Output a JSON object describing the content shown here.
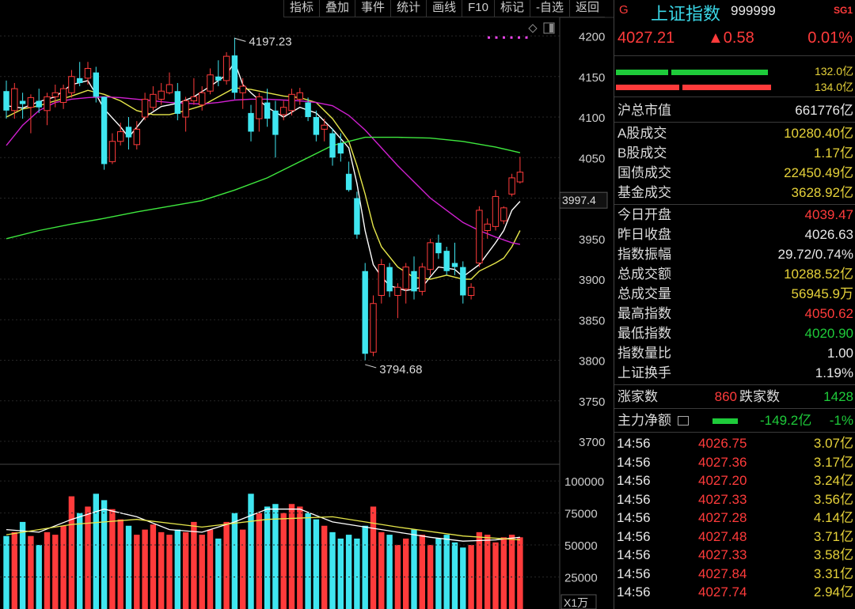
{
  "toolbar": {
    "items": [
      "指标",
      "叠加",
      "事件",
      "统计",
      "画线",
      "F10",
      "标记",
      "-自选",
      "返回"
    ]
  },
  "chart_data": {
    "type": "candlestick",
    "price_axis": {
      "min": 3700,
      "max": 4200,
      "ticks": [
        "4200",
        "4150",
        "4100",
        "4050",
        "4000",
        "3950",
        "3900",
        "3850",
        "3800",
        "3750",
        "3700"
      ]
    },
    "current_price_label": "3997.4",
    "high_annotation": "4197.23",
    "low_annotation": "3794.68",
    "candles": [
      {
        "o": 4132,
        "h": 4145,
        "l": 4098,
        "c": 4108
      },
      {
        "o": 4108,
        "h": 4142,
        "l": 4098,
        "c": 4135
      },
      {
        "o": 4120,
        "h": 4130,
        "l": 4098,
        "c": 4116
      },
      {
        "o": 4112,
        "h": 4128,
        "l": 4080,
        "c": 4124
      },
      {
        "o": 4120,
        "h": 4135,
        "l": 4105,
        "c": 4112
      },
      {
        "o": 4108,
        "h": 4130,
        "l": 4090,
        "c": 4125
      },
      {
        "o": 4125,
        "h": 4140,
        "l": 4112,
        "c": 4130
      },
      {
        "o": 4118,
        "h": 4140,
        "l": 4110,
        "c": 4135
      },
      {
        "o": 4130,
        "h": 4158,
        "l": 4124,
        "c": 4150
      },
      {
        "o": 4148,
        "h": 4168,
        "l": 4138,
        "c": 4142
      },
      {
        "o": 4148,
        "h": 4168,
        "l": 4140,
        "c": 4160
      },
      {
        "o": 4155,
        "h": 4162,
        "l": 4118,
        "c": 4125
      },
      {
        "o": 4125,
        "h": 4125,
        "l": 4035,
        "c": 4042
      },
      {
        "o": 4045,
        "h": 4080,
        "l": 4042,
        "c": 4070
      },
      {
        "o": 4070,
        "h": 4093,
        "l": 4065,
        "c": 4082
      },
      {
        "o": 4088,
        "h": 4100,
        "l": 4060,
        "c": 4075
      },
      {
        "o": 4066,
        "h": 4095,
        "l": 4060,
        "c": 4085
      },
      {
        "o": 4100,
        "h": 4130,
        "l": 4096,
        "c": 4122
      },
      {
        "o": 4112,
        "h": 4138,
        "l": 4108,
        "c": 4128
      },
      {
        "o": 4122,
        "h": 4142,
        "l": 4115,
        "c": 4132
      },
      {
        "o": 4130,
        "h": 4155,
        "l": 4128,
        "c": 4140
      },
      {
        "o": 4132,
        "h": 4142,
        "l": 4096,
        "c": 4104
      },
      {
        "o": 4100,
        "h": 4125,
        "l": 4082,
        "c": 4120
      },
      {
        "o": 4120,
        "h": 4148,
        "l": 4115,
        "c": 4125
      },
      {
        "o": 4115,
        "h": 4138,
        "l": 4108,
        "c": 4130
      },
      {
        "o": 4132,
        "h": 4160,
        "l": 4128,
        "c": 4152
      },
      {
        "o": 4150,
        "h": 4170,
        "l": 4138,
        "c": 4145
      },
      {
        "o": 4145,
        "h": 4180,
        "l": 4140,
        "c": 4175
      },
      {
        "o": 4176,
        "h": 4198,
        "l": 4122,
        "c": 4130
      },
      {
        "o": 4130,
        "h": 4148,
        "l": 4110,
        "c": 4138
      },
      {
        "o": 4105,
        "h": 4115,
        "l": 4070,
        "c": 4082
      },
      {
        "o": 4098,
        "h": 4130,
        "l": 4082,
        "c": 4125
      },
      {
        "o": 4118,
        "h": 4135,
        "l": 4088,
        "c": 4098
      },
      {
        "o": 4108,
        "h": 4120,
        "l": 4050,
        "c": 4078
      },
      {
        "o": 4103,
        "h": 4120,
        "l": 4096,
        "c": 4112
      },
      {
        "o": 4108,
        "h": 4135,
        "l": 4102,
        "c": 4128
      },
      {
        "o": 4122,
        "h": 4136,
        "l": 4115,
        "c": 4130
      },
      {
        "o": 4118,
        "h": 4124,
        "l": 4095,
        "c": 4100
      },
      {
        "o": 4100,
        "h": 4108,
        "l": 4070,
        "c": 4078
      },
      {
        "o": 4085,
        "h": 4098,
        "l": 4070,
        "c": 4090
      },
      {
        "o": 4080,
        "h": 4086,
        "l": 4040,
        "c": 4050
      },
      {
        "o": 4068,
        "h": 4080,
        "l": 4045,
        "c": 4055
      },
      {
        "o": 4030,
        "h": 4045,
        "l": 4008,
        "c": 4010
      },
      {
        "o": 4000,
        "h": 4008,
        "l": 3950,
        "c": 3955
      },
      {
        "o": 3910,
        "h": 3920,
        "l": 3800,
        "c": 3808
      },
      {
        "o": 3810,
        "h": 3880,
        "l": 3805,
        "c": 3870
      },
      {
        "o": 3880,
        "h": 3925,
        "l": 3870,
        "c": 3918
      },
      {
        "o": 3915,
        "h": 3920,
        "l": 3878,
        "c": 3885
      },
      {
        "o": 3880,
        "h": 3895,
        "l": 3852,
        "c": 3890
      },
      {
        "o": 3888,
        "h": 3920,
        "l": 3870,
        "c": 3915
      },
      {
        "o": 3910,
        "h": 3928,
        "l": 3875,
        "c": 3885
      },
      {
        "o": 3885,
        "h": 3920,
        "l": 3880,
        "c": 3915
      },
      {
        "o": 3912,
        "h": 3950,
        "l": 3905,
        "c": 3945
      },
      {
        "o": 3945,
        "h": 3955,
        "l": 3925,
        "c": 3932
      },
      {
        "o": 3935,
        "h": 3940,
        "l": 3905,
        "c": 3910
      },
      {
        "o": 3920,
        "h": 3945,
        "l": 3905,
        "c": 3915
      },
      {
        "o": 3915,
        "h": 3922,
        "l": 3870,
        "c": 3880
      },
      {
        "o": 3880,
        "h": 3895,
        "l": 3875,
        "c": 3890
      },
      {
        "o": 3920,
        "h": 3990,
        "l": 3915,
        "c": 3985
      },
      {
        "o": 3960,
        "h": 3975,
        "l": 3950,
        "c": 3968
      },
      {
        "o": 3965,
        "h": 4010,
        "l": 3960,
        "c": 4002
      },
      {
        "o": 3972,
        "h": 3990,
        "l": 3968,
        "c": 3988
      },
      {
        "o": 4005,
        "h": 4030,
        "l": 4002,
        "c": 4025
      },
      {
        "o": 4020,
        "h": 4051,
        "l": 4018,
        "c": 4032
      }
    ],
    "ma": [
      {
        "color": "#ffffff",
        "points": [
          [
            0,
            4114
          ],
          [
            2,
            4111
          ],
          [
            4,
            4119
          ],
          [
            6,
            4125
          ],
          [
            8,
            4140
          ],
          [
            10,
            4145
          ],
          [
            11,
            4128
          ],
          [
            12,
            4110
          ],
          [
            14,
            4088
          ],
          [
            15,
            4075
          ],
          [
            17,
            4100
          ],
          [
            19,
            4113
          ],
          [
            21,
            4117
          ],
          [
            23,
            4125
          ],
          [
            25,
            4138
          ],
          [
            27,
            4152
          ],
          [
            28,
            4168
          ],
          [
            29,
            4140
          ],
          [
            30,
            4130
          ],
          [
            32,
            4112
          ],
          [
            34,
            4100
          ],
          [
            36,
            4112
          ],
          [
            38,
            4105
          ],
          [
            40,
            4085
          ],
          [
            42,
            4062
          ],
          [
            43,
            4018
          ],
          [
            44,
            3960
          ],
          [
            45,
            3918
          ],
          [
            46,
            3903
          ],
          [
            47,
            3892
          ],
          [
            49,
            3886
          ],
          [
            51,
            3890
          ],
          [
            52,
            3903
          ],
          [
            53,
            3915
          ],
          [
            55,
            3912
          ],
          [
            56,
            3903
          ],
          [
            58,
            3918
          ],
          [
            60,
            3945
          ],
          [
            61,
            3960
          ],
          [
            62,
            3985
          ],
          [
            63,
            3996
          ]
        ]
      },
      {
        "color": "#e6e64a",
        "points": [
          [
            0,
            4100
          ],
          [
            2,
            4110
          ],
          [
            4,
            4114
          ],
          [
            6,
            4120
          ],
          [
            8,
            4126
          ],
          [
            10,
            4133
          ],
          [
            12,
            4128
          ],
          [
            14,
            4120
          ],
          [
            16,
            4108
          ],
          [
            18,
            4103
          ],
          [
            20,
            4103
          ],
          [
            22,
            4108
          ],
          [
            24,
            4114
          ],
          [
            26,
            4125
          ],
          [
            28,
            4136
          ],
          [
            30,
            4134
          ],
          [
            32,
            4130
          ],
          [
            34,
            4126
          ],
          [
            36,
            4124
          ],
          [
            38,
            4118
          ],
          [
            40,
            4098
          ],
          [
            42,
            4070
          ],
          [
            43,
            4040
          ],
          [
            44,
            4005
          ],
          [
            45,
            3965
          ],
          [
            46,
            3940
          ],
          [
            48,
            3915
          ],
          [
            50,
            3902
          ],
          [
            52,
            3900
          ],
          [
            54,
            3905
          ],
          [
            56,
            3900
          ],
          [
            57,
            3900
          ],
          [
            58,
            3910
          ],
          [
            60,
            3920
          ],
          [
            61,
            3926
          ],
          [
            62,
            3940
          ],
          [
            63,
            3960
          ]
        ]
      },
      {
        "color": "#d020d0",
        "points": [
          [
            0,
            4065
          ],
          [
            2,
            4090
          ],
          [
            4,
            4108
          ],
          [
            6,
            4118
          ],
          [
            8,
            4122
          ],
          [
            10,
            4124
          ],
          [
            12,
            4125
          ],
          [
            14,
            4124
          ],
          [
            16,
            4122
          ],
          [
            18,
            4120
          ],
          [
            20,
            4118
          ],
          [
            22,
            4117
          ],
          [
            24,
            4116
          ],
          [
            26,
            4118
          ],
          [
            28,
            4121
          ],
          [
            30,
            4122
          ],
          [
            32,
            4122
          ],
          [
            34,
            4121
          ],
          [
            36,
            4120
          ],
          [
            38,
            4118
          ],
          [
            40,
            4114
          ],
          [
            42,
            4102
          ],
          [
            44,
            4084
          ],
          [
            46,
            4062
          ],
          [
            48,
            4040
          ],
          [
            50,
            4020
          ],
          [
            52,
            4000
          ],
          [
            54,
            3985
          ],
          [
            56,
            3970
          ],
          [
            58,
            3960
          ],
          [
            60,
            3952
          ],
          [
            62,
            3945
          ],
          [
            63,
            3943
          ]
        ]
      },
      {
        "color": "#3ee83e",
        "points": [
          [
            0,
            3950
          ],
          [
            4,
            3960
          ],
          [
            8,
            3968
          ],
          [
            12,
            3975
          ],
          [
            16,
            3983
          ],
          [
            20,
            3990
          ],
          [
            24,
            3997
          ],
          [
            28,
            4010
          ],
          [
            32,
            4025
          ],
          [
            36,
            4045
          ],
          [
            40,
            4065
          ],
          [
            44,
            4075
          ],
          [
            48,
            4075
          ],
          [
            52,
            4074
          ],
          [
            56,
            4070
          ],
          [
            60,
            4063
          ],
          [
            63,
            4056
          ]
        ]
      }
    ],
    "volume_axis": {
      "ticks": [
        "100000",
        "75000",
        "50000",
        "25000"
      ],
      "unit": "X1万"
    },
    "volume": [
      57,
      60,
      68,
      57,
      50,
      60,
      58,
      65,
      88,
      75,
      80,
      90,
      85,
      78,
      70,
      65,
      58,
      62,
      66,
      60,
      58,
      62,
      60,
      68,
      58,
      62,
      55,
      68,
      75,
      62,
      90,
      75,
      80,
      82,
      75,
      82,
      80,
      75,
      70,
      65,
      60,
      55,
      58,
      55,
      65,
      80,
      60,
      58,
      50,
      55,
      62,
      58,
      50,
      55,
      58,
      52,
      48,
      50,
      60,
      58,
      52,
      56,
      58,
      56
    ],
    "vol_ma": [
      [
        0,
        62
      ],
      [
        4,
        60
      ],
      [
        8,
        70
      ],
      [
        12,
        78
      ],
      [
        16,
        72
      ],
      [
        20,
        62
      ],
      [
        24,
        60
      ],
      [
        28,
        68
      ],
      [
        32,
        78
      ],
      [
        36,
        78
      ],
      [
        40,
        68
      ],
      [
        44,
        64
      ],
      [
        48,
        60
      ],
      [
        52,
        56
      ],
      [
        56,
        53
      ],
      [
        60,
        54
      ],
      [
        63,
        56
      ]
    ],
    "vol_ma2": [
      [
        0,
        58
      ],
      [
        8,
        66
      ],
      [
        16,
        70
      ],
      [
        24,
        64
      ],
      [
        32,
        70
      ],
      [
        40,
        72
      ],
      [
        48,
        64
      ],
      [
        56,
        57
      ],
      [
        63,
        54
      ]
    ]
  },
  "quote": {
    "g": "G",
    "name": "上证指数",
    "code": "999999",
    "sg": "SG1",
    "price": "4027.21",
    "change": "▲0.58",
    "pct": "0.01%",
    "buy_amount": "132.0亿",
    "sell_amount": "134.0亿"
  },
  "stats": {
    "market_cap": {
      "label": "沪总市值",
      "value": "661776亿"
    },
    "a_share": {
      "label": "A股成交",
      "value": "10280.40亿"
    },
    "b_share": {
      "label": "B股成交",
      "value": "1.17亿"
    },
    "bond": {
      "label": "国债成交",
      "value": "22450.49亿"
    },
    "fund": {
      "label": "基金成交",
      "value": "3628.92亿"
    },
    "open": {
      "label": "今日开盘",
      "value": "4039.47"
    },
    "prev_close": {
      "label": "昨日收盘",
      "value": "4026.63"
    },
    "amplitude": {
      "label": "指数振幅",
      "value": "29.72/0.74%"
    },
    "turnover": {
      "label": "总成交额",
      "value": "10288.52亿"
    },
    "volume": {
      "label": "总成交量",
      "value": "56945.9万"
    },
    "high": {
      "label": "最高指数",
      "value": "4050.62"
    },
    "low": {
      "label": "最低指数",
      "value": "4020.90"
    },
    "vol_ratio": {
      "label": "指数量比",
      "value": "1.00"
    },
    "exchange": {
      "label": "上证换手",
      "value": "1.19%"
    },
    "up_label": "涨家数",
    "up_count": "860",
    "down_label": "跌家数",
    "down_count": "1428",
    "main_flow_label": "主力净额",
    "main_flow_value": "-149.2亿",
    "main_flow_pct": "-1%"
  },
  "trades": [
    {
      "time": "14:56",
      "price": "4026.75",
      "vol": "3.07亿"
    },
    {
      "time": "14:56",
      "price": "4027.36",
      "vol": "3.17亿"
    },
    {
      "time": "14:56",
      "price": "4027.20",
      "vol": "3.24亿"
    },
    {
      "time": "14:56",
      "price": "4027.33",
      "vol": "3.56亿"
    },
    {
      "time": "14:56",
      "price": "4027.28",
      "vol": "4.14亿"
    },
    {
      "time": "14:56",
      "price": "4027.48",
      "vol": "3.71亿"
    },
    {
      "time": "14:56",
      "price": "4027.33",
      "vol": "3.58亿"
    },
    {
      "time": "14:56",
      "price": "4027.84",
      "vol": "3.31亿"
    },
    {
      "time": "14:56",
      "price": "4027.74",
      "vol": "2.94亿"
    }
  ]
}
